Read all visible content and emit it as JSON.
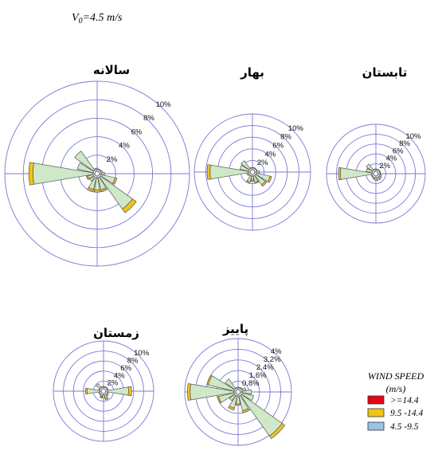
{
  "header": {
    "v0_label": "V0=4.5 m/s",
    "v0_symbol": "V",
    "v0_subscript": "0",
    "v0_rest": "=4.5 m/s"
  },
  "legend": {
    "title": "WIND SPEED",
    "unit": "(m/s)",
    "items": [
      {
        "label": ">=14.4",
        "color": "#e30613"
      },
      {
        "label": "9.5 -14.4",
        "color": "#f0c419"
      },
      {
        "label": "4.5 -9.5",
        "color": "#9cc3e6"
      }
    ]
  },
  "colors": {
    "ring": "#7b78d6",
    "petal_fill": "#cfe8c7",
    "petal_stroke": "#555555",
    "mid_band": "#f0c419",
    "outer_band": "#e30613"
  },
  "chart_data": [
    {
      "type": "windrose",
      "title": "سالانه",
      "ring_labels": [
        "2%",
        "4%",
        "6%",
        "8%",
        "10%"
      ],
      "ring_values": [
        2,
        4,
        6,
        8,
        10
      ],
      "directions_deg": [
        0,
        22.5,
        45,
        67.5,
        90,
        112.5,
        135,
        157.5,
        180,
        202.5,
        225,
        247.5,
        270,
        292.5,
        315,
        337.5
      ],
      "frequencies": [
        0.6,
        0.4,
        0.4,
        0.6,
        0.8,
        2.2,
        5.2,
        2.0,
        2.0,
        2.0,
        1.0,
        1.2,
        7.4,
        2.2,
        3.0,
        0.6
      ],
      "yellow_band": [
        0,
        0,
        0,
        0,
        0,
        0.2,
        0.5,
        0.2,
        0.25,
        0.25,
        0,
        0.15,
        0.45,
        0,
        0,
        0
      ]
    },
    {
      "type": "windrose",
      "title": "بهار",
      "ring_labels": [
        "2%",
        "4%",
        "6%",
        "8%",
        "10%"
      ],
      "ring_values": [
        2,
        4,
        6,
        8,
        10
      ],
      "directions_deg": [
        0,
        22.5,
        45,
        67.5,
        90,
        112.5,
        135,
        157.5,
        180,
        202.5,
        225,
        247.5,
        270,
        292.5,
        315,
        337.5
      ],
      "frequencies": [
        0.5,
        0.4,
        0.5,
        0.8,
        1.2,
        3.4,
        3.0,
        2.0,
        1.6,
        2.0,
        0.8,
        1.0,
        7.8,
        2.2,
        2.4,
        0.6
      ],
      "yellow_band": [
        0,
        0,
        0,
        0,
        0,
        0.3,
        0.3,
        0.2,
        0.25,
        0.25,
        0,
        0,
        0.5,
        0,
        0,
        0
      ]
    },
    {
      "type": "windrose",
      "title": "تابستان",
      "ring_labels": [
        "2%",
        "4%",
        "6%",
        "8%",
        "10%"
      ],
      "ring_values": [
        2,
        4,
        6,
        8,
        10
      ],
      "directions_deg": [
        0,
        22.5,
        45,
        67.5,
        90,
        112.5,
        135,
        157.5,
        180,
        202.5,
        225,
        247.5,
        270,
        292.5,
        315,
        337.5
      ],
      "frequencies": [
        0.4,
        0.3,
        0.3,
        0.6,
        0.8,
        1.2,
        1.4,
        1.4,
        1.4,
        1.2,
        0.8,
        1.0,
        7.6,
        2.0,
        2.4,
        0.6
      ],
      "yellow_band": [
        0,
        0,
        0,
        0,
        0,
        0,
        0,
        0,
        0,
        0,
        0,
        0,
        0.4,
        0,
        0,
        0
      ]
    },
    {
      "type": "windrose",
      "title": "زمستان",
      "ring_labels": [
        "2%",
        "4%",
        "6%",
        "8%",
        "10%"
      ],
      "ring_values": [
        2,
        4,
        6,
        8,
        10
      ],
      "directions_deg": [
        0,
        22.5,
        45,
        67.5,
        90,
        112.5,
        135,
        157.5,
        180,
        202.5,
        225,
        247.5,
        270,
        292.5,
        315,
        337.5
      ],
      "frequencies": [
        0.4,
        0.4,
        0.5,
        1.0,
        5.6,
        1.0,
        1.2,
        1.8,
        1.4,
        1.4,
        0.6,
        1.0,
        3.6,
        1.0,
        1.8,
        0.5
      ],
      "yellow_band": [
        0,
        0,
        0,
        0,
        0.6,
        0,
        0,
        0.3,
        0,
        0.2,
        0,
        0,
        0.3,
        0,
        0,
        0
      ]
    },
    {
      "type": "windrose",
      "title": "پاییز",
      "ring_labels": [
        "0.8%",
        "1.6%",
        "2.4%",
        "3.2%",
        "4%"
      ],
      "ring_values": [
        0.8,
        1.6,
        2.4,
        3.2,
        4.0
      ],
      "directions_deg": [
        0,
        22.5,
        45,
        67.5,
        90,
        112.5,
        135,
        157.5,
        180,
        202.5,
        225,
        247.5,
        270,
        292.5,
        315,
        337.5
      ],
      "frequencies": [
        0.3,
        0.3,
        0.4,
        0.6,
        1.0,
        1.2,
        4.3,
        1.6,
        1.0,
        1.4,
        0.8,
        1.6,
        3.8,
        2.4,
        1.2,
        0.3
      ],
      "yellow_band": [
        0,
        0,
        0,
        0,
        0,
        0,
        0.25,
        0.15,
        0.1,
        0.15,
        0,
        0.1,
        0.2,
        0.1,
        0,
        0
      ]
    }
  ]
}
